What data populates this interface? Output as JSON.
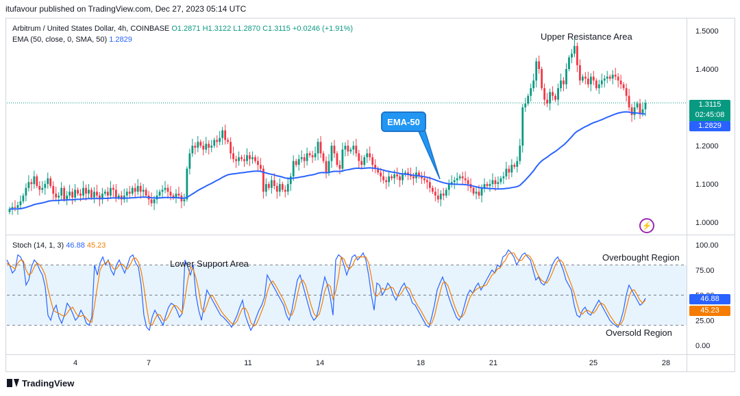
{
  "header": {
    "publisher": "itufavour published on TradingView.com, Dec 27, 2023 05:14 UTC"
  },
  "legend": {
    "symbol": "Arbitrum / United States Dollar, 4h, COINBASE",
    "open": "O1.2871",
    "high": "H1.3122",
    "low": "L1.2870",
    "close": "C1.3115",
    "change": "+0.0246 (+1.91%)",
    "ema_label": "EMA (50, close, 0, SMA, 50)",
    "ema_value": "1.2829"
  },
  "stoch_legend": {
    "label": "Stoch (14, 1, 3)",
    "k_value": "46.88",
    "d_value": "45.23"
  },
  "price_tags": {
    "last": "1.3115",
    "countdown": "02:45:08",
    "ema": "1.2829",
    "stoch_k": "46.88",
    "stoch_d": "45.23"
  },
  "annotations": {
    "upper_resistance": "Upper Resistance Area",
    "lower_support": "Lower Support Area",
    "ema50": "EMA-50",
    "overbought": "Overbought Region",
    "oversold": "Oversold Region"
  },
  "branding": {
    "logo_text": "TradingView"
  },
  "colors": {
    "up": "#089981",
    "down": "#f23645",
    "ema": "#2962ff",
    "stoch_k": "#2962ff",
    "stoch_d": "#f57c00",
    "band": "#e3f2fd"
  },
  "chart_data": [
    {
      "type": "candlestick",
      "title": "Arbitrum / United States Dollar, 4h, COINBASE",
      "x_tick_labels": [
        "4",
        "7",
        "11",
        "14",
        "18",
        "21",
        "25",
        "28"
      ],
      "y_tick_labels": [
        "1.5000",
        "1.4000",
        "1.3000",
        "1.2000",
        "1.1000",
        "1.0000"
      ],
      "ylim": [
        0.97,
        1.53
      ],
      "grid": false,
      "close": [
        1.035,
        1.04,
        1.038,
        1.045,
        1.055,
        1.07,
        1.09,
        1.105,
        1.1,
        1.12,
        1.095,
        1.085,
        1.09,
        1.1,
        1.115,
        1.095,
        1.075,
        1.065,
        1.07,
        1.09,
        1.06,
        1.07,
        1.08,
        1.065,
        1.085,
        1.075,
        1.07,
        1.09,
        1.075,
        1.085,
        1.065,
        1.08,
        1.07,
        1.06,
        1.075,
        1.08,
        1.07,
        1.09,
        1.085,
        1.065,
        1.07,
        1.06,
        1.07,
        1.08,
        1.075,
        1.09,
        1.08,
        1.095,
        1.08,
        1.085,
        1.07,
        1.06,
        1.05,
        1.06,
        1.07,
        1.08,
        1.085,
        1.09,
        1.08,
        1.07,
        1.065,
        1.075,
        1.07,
        1.055,
        1.06,
        1.14,
        1.18,
        1.2,
        1.195,
        1.21,
        1.2,
        1.19,
        1.205,
        1.195,
        1.2,
        1.215,
        1.21,
        1.22,
        1.24,
        1.215,
        1.21,
        1.18,
        1.165,
        1.16,
        1.17,
        1.165,
        1.16,
        1.175,
        1.165,
        1.17,
        1.16,
        1.15,
        1.14,
        1.08,
        1.1,
        1.09,
        1.11,
        1.095,
        1.08,
        1.1,
        1.085,
        1.08,
        1.1,
        1.12,
        1.16,
        1.15,
        1.165,
        1.17,
        1.16,
        1.18,
        1.175,
        1.17,
        1.18,
        1.21,
        1.18,
        1.16,
        1.13,
        1.16,
        1.2,
        1.18,
        1.15,
        1.14,
        1.19,
        1.2,
        1.185,
        1.19,
        1.2,
        1.18,
        1.16,
        1.15,
        1.17,
        1.18,
        1.17,
        1.15,
        1.14,
        1.13,
        1.12,
        1.11,
        1.105,
        1.12,
        1.115,
        1.125,
        1.12,
        1.11,
        1.125,
        1.13,
        1.125,
        1.12,
        1.115,
        1.13,
        1.12,
        1.115,
        1.11,
        1.105,
        1.09,
        1.08,
        1.07,
        1.06,
        1.075,
        1.07,
        1.085,
        1.1,
        1.105,
        1.11,
        1.115,
        1.12,
        1.115,
        1.11,
        1.1,
        1.09,
        1.075,
        1.08,
        1.07,
        1.09,
        1.1,
        1.095,
        1.1,
        1.11,
        1.1,
        1.105,
        1.115,
        1.12,
        1.14,
        1.13,
        1.15,
        1.145,
        1.16,
        1.2,
        1.3,
        1.31,
        1.33,
        1.35,
        1.37,
        1.42,
        1.4,
        1.35,
        1.32,
        1.31,
        1.34,
        1.33,
        1.32,
        1.35,
        1.37,
        1.36,
        1.4,
        1.43,
        1.44,
        1.46,
        1.41,
        1.37,
        1.38,
        1.375,
        1.36,
        1.38,
        1.37,
        1.35,
        1.36,
        1.37,
        1.375,
        1.38,
        1.375,
        1.385,
        1.38,
        1.37,
        1.36,
        1.35,
        1.33,
        1.3,
        1.28,
        1.3,
        1.31,
        1.285,
        1.295,
        1.3115
      ],
      "series": [
        {
          "name": "EMA (50, close, 0, SMA, 50)",
          "last": 1.2829
        }
      ]
    },
    {
      "type": "line",
      "title": "Stoch (14, 1, 3)",
      "y_tick_labels": [
        "100.00",
        "75.00",
        "50.00",
        "25.00",
        "0.00"
      ],
      "ylim": [
        0,
        100
      ],
      "bands": [
        20,
        50,
        80
      ],
      "k_last": 46.88,
      "d_last": 45.23,
      "k": [
        85,
        80,
        72,
        75,
        90,
        88,
        82,
        60,
        65,
        78,
        85,
        82,
        75,
        70,
        58,
        30,
        25,
        35,
        40,
        28,
        22,
        30,
        42,
        38,
        32,
        25,
        28,
        35,
        30,
        22,
        20,
        28,
        80,
        70,
        82,
        88,
        80,
        85,
        75,
        70,
        80,
        85,
        78,
        72,
        80,
        88,
        90,
        82,
        78,
        60,
        30,
        18,
        15,
        28,
        35,
        30,
        25,
        20,
        30,
        38,
        42,
        40,
        35,
        28,
        32,
        85,
        78,
        70,
        80,
        50,
        35,
        25,
        40,
        55,
        50,
        45,
        40,
        35,
        30,
        28,
        25,
        22,
        18,
        24,
        30,
        38,
        45,
        30,
        22,
        15,
        20,
        28,
        35,
        40,
        48,
        70,
        65,
        60,
        55,
        50,
        45,
        40,
        30,
        25,
        35,
        50,
        65,
        70,
        60,
        50,
        40,
        30,
        25,
        28,
        40,
        55,
        68,
        60,
        48,
        30,
        85,
        90,
        88,
        80,
        70,
        78,
        88,
        90,
        85,
        88,
        92,
        85,
        70,
        50,
        35,
        62,
        60,
        50,
        55,
        62,
        58,
        50,
        45,
        52,
        58,
        62,
        55,
        50,
        42,
        40,
        35,
        30,
        25,
        20,
        18,
        28,
        40,
        55,
        62,
        68,
        60,
        50,
        42,
        35,
        28,
        25,
        30,
        40,
        50,
        55,
        52,
        58,
        62,
        55,
        60,
        65,
        70,
        75,
        72,
        80,
        78,
        88,
        90,
        95,
        92,
        88,
        80,
        85,
        90,
        92,
        88,
        85,
        75,
        65,
        68,
        62,
        60,
        65,
        72,
        80,
        85,
        88,
        82,
        75,
        65,
        60,
        55,
        40,
        30,
        28,
        35,
        38,
        32,
        30,
        35,
        40,
        45,
        40,
        35,
        30,
        25,
        22,
        20,
        18,
        25,
        35,
        50,
        60,
        55,
        50,
        45,
        40,
        42,
        46.88
      ],
      "d": [
        82,
        80,
        78,
        76,
        82,
        85,
        84,
        75,
        70,
        72,
        78,
        82,
        80,
        76,
        70,
        56,
        45,
        35,
        33,
        32,
        30,
        29,
        32,
        36,
        38,
        33,
        29,
        29,
        30,
        27,
        24,
        23,
        40,
        58,
        75,
        80,
        82,
        84,
        80,
        76,
        76,
        80,
        81,
        78,
        76,
        80,
        86,
        87,
        83,
        74,
        58,
        38,
        22,
        20,
        26,
        31,
        30,
        25,
        25,
        29,
        35,
        40,
        39,
        36,
        32,
        47,
        65,
        78,
        76,
        67,
        55,
        37,
        33,
        40,
        48,
        50,
        45,
        40,
        35,
        31,
        28,
        25,
        22,
        21,
        24,
        31,
        37,
        37,
        32,
        23,
        19,
        21,
        27,
        34,
        41,
        53,
        61,
        64,
        60,
        55,
        50,
        45,
        38,
        31,
        30,
        37,
        50,
        62,
        65,
        60,
        50,
        40,
        32,
        28,
        31,
        41,
        54,
        61,
        59,
        46,
        54,
        68,
        88,
        86,
        79,
        76,
        79,
        85,
        88,
        88,
        88,
        88,
        82,
        68,
        52,
        49,
        52,
        57,
        55,
        56,
        58,
        57,
        51,
        49,
        52,
        57,
        58,
        56,
        49,
        44,
        39,
        35,
        30,
        25,
        21,
        22,
        29,
        41,
        52,
        62,
        63,
        59,
        51,
        42,
        35,
        29,
        28,
        32,
        40,
        48,
        52,
        55,
        57,
        58,
        59,
        60,
        65,
        70,
        72,
        76,
        77,
        82,
        85,
        91,
        92,
        92,
        87,
        84,
        85,
        89,
        90,
        88,
        83,
        75,
        69,
        65,
        63,
        62,
        66,
        72,
        79,
        84,
        85,
        82,
        74,
        67,
        60,
        52,
        42,
        33,
        31,
        34,
        35,
        33,
        32,
        35,
        40,
        42,
        40,
        35,
        30,
        26,
        22,
        20,
        21,
        26,
        37,
        48,
        55,
        55,
        50,
        45,
        42,
        45.23
      ]
    }
  ]
}
